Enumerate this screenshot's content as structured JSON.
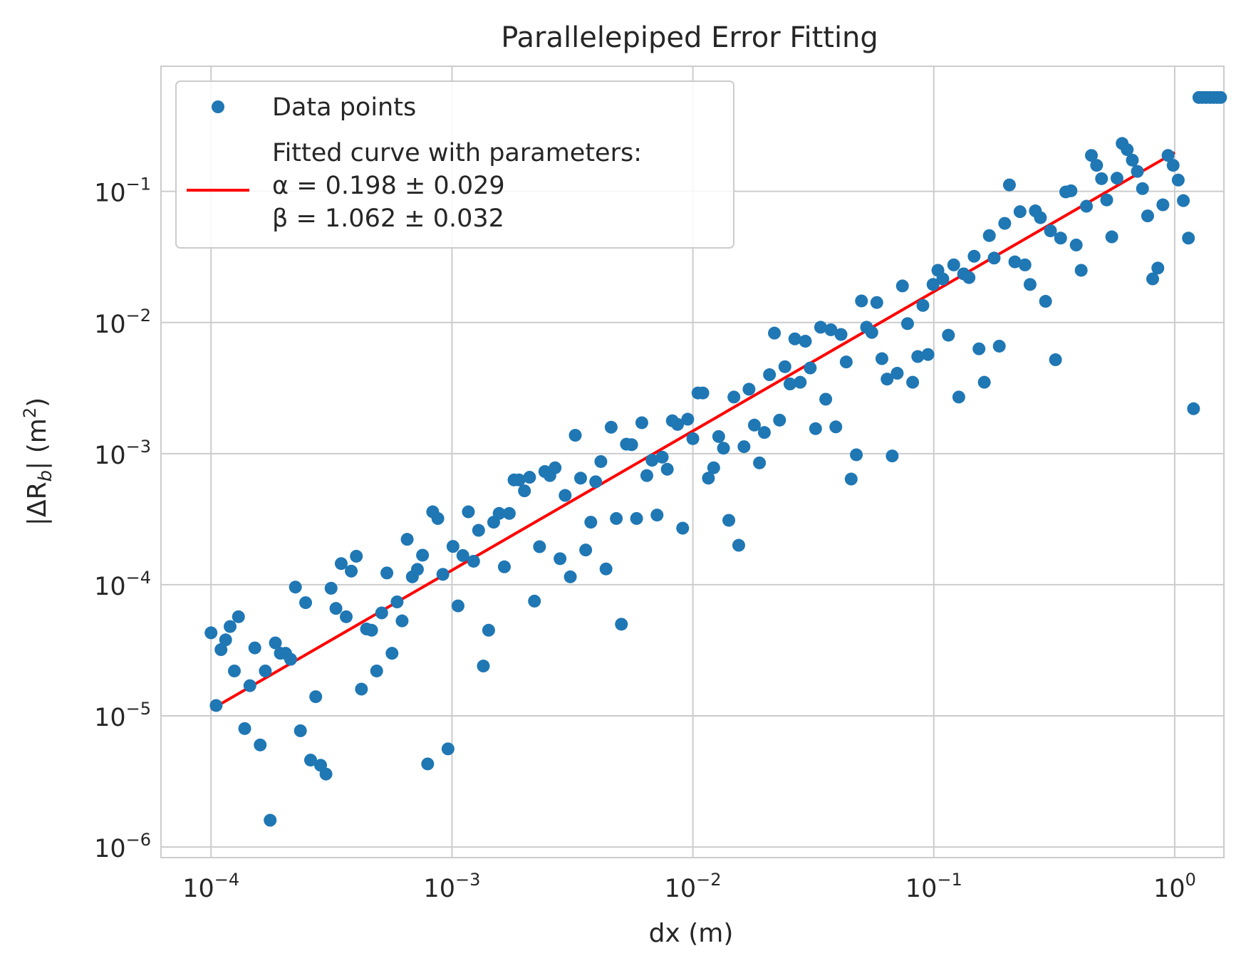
{
  "chart_data": {
    "type": "scatter",
    "title": "Parallelepiped Error Fitting",
    "xlabel": "dx (m)",
    "ylabel_main": "|ΔR",
    "ylabel_sub": "b",
    "ylabel_tail": "| (m",
    "ylabel_sup": "2",
    "ylabel_close": ")",
    "xscale": "log",
    "yscale": "log",
    "xlim": [
      6.2e-05,
      1.6
    ],
    "ylim": [
      8.3e-07,
      0.9
    ],
    "grid": true,
    "legend_position": "upper-left",
    "x_ticks": [
      {
        "value": 0.0001,
        "base": "10",
        "exp": "−4"
      },
      {
        "value": 0.001,
        "base": "10",
        "exp": "−3"
      },
      {
        "value": 0.01,
        "base": "10",
        "exp": "−2"
      },
      {
        "value": 0.1,
        "base": "10",
        "exp": "−1"
      },
      {
        "value": 1,
        "base": "10",
        "exp": "0"
      }
    ],
    "y_ticks": [
      {
        "value": 1e-06,
        "base": "10",
        "exp": "−6"
      },
      {
        "value": 1e-05,
        "base": "10",
        "exp": "−5"
      },
      {
        "value": 0.0001,
        "base": "10",
        "exp": "−4"
      },
      {
        "value": 0.001,
        "base": "10",
        "exp": "−3"
      },
      {
        "value": 0.01,
        "base": "10",
        "exp": "−2"
      },
      {
        "value": 0.1,
        "base": "10",
        "exp": "−1"
      }
    ],
    "series": [
      {
        "name": "Data points",
        "kind": "scatter",
        "color": "#1f77b4",
        "points": [
          [
            0.0001,
            4.3e-05
          ],
          [
            0.000105,
            1.2e-05
          ],
          [
            0.00011,
            3.2e-05
          ],
          [
            0.000115,
            3.8e-05
          ],
          [
            0.00012,
            4.8e-05
          ],
          [
            0.000125,
            2.2e-05
          ],
          [
            0.00013,
            5.7e-05
          ],
          [
            0.000138,
            8e-06
          ],
          [
            0.000145,
            1.7e-05
          ],
          [
            0.000152,
            3.3e-05
          ],
          [
            0.00016,
            6e-06
          ],
          [
            0.000168,
            2.2e-05
          ],
          [
            0.000176,
            1.6e-06
          ],
          [
            0.000185,
            3.6e-05
          ],
          [
            0.000194,
            3e-05
          ],
          [
            0.000204,
            3e-05
          ],
          [
            0.000214,
            2.7e-05
          ],
          [
            0.000224,
            9.6e-05
          ],
          [
            0.000235,
            7.7e-06
          ],
          [
            0.000247,
            7.3e-05
          ],
          [
            0.000259,
            4.6e-06
          ],
          [
            0.000272,
            1.4e-05
          ],
          [
            0.000285,
            4.2e-06
          ],
          [
            0.0003,
            3.6e-06
          ],
          [
            0.000315,
            9.4e-05
          ],
          [
            0.00033,
            6.6e-05
          ],
          [
            0.000347,
            0.000145
          ],
          [
            0.000364,
            5.7e-05
          ],
          [
            0.000382,
            0.000127
          ],
          [
            0.000401,
            0.000165
          ],
          [
            0.000421,
            1.6e-05
          ],
          [
            0.000442,
            4.6e-05
          ],
          [
            0.000464,
            4.5e-05
          ],
          [
            0.000487,
            2.2e-05
          ],
          [
            0.000511,
            6.1e-05
          ],
          [
            0.000537,
            0.000123
          ],
          [
            0.000564,
            3e-05
          ],
          [
            0.000592,
            7.4e-05
          ],
          [
            0.000621,
            5.3e-05
          ],
          [
            0.000652,
            0.000222
          ],
          [
            0.000685,
            0.000115
          ],
          [
            0.000719,
            0.000131
          ],
          [
            0.000755,
            0.000168
          ],
          [
            0.000793,
            4.3e-06
          ],
          [
            0.000832,
            0.00036
          ],
          [
            0.000874,
            0.00032
          ],
          [
            0.000917,
            0.00012
          ],
          [
            0.000963,
            5.6e-06
          ],
          [
            0.00101,
            0.000196
          ],
          [
            0.00106,
            6.9e-05
          ],
          [
            0.00111,
            0.000167
          ],
          [
            0.00117,
            0.00036
          ],
          [
            0.00123,
            0.000151
          ],
          [
            0.00129,
            0.00026
          ],
          [
            0.00135,
            2.4e-05
          ],
          [
            0.00142,
            4.5e-05
          ],
          [
            0.00149,
            0.0003
          ],
          [
            0.00157,
            0.00035
          ],
          [
            0.00165,
            0.000137
          ],
          [
            0.00173,
            0.00035
          ],
          [
            0.00181,
            0.00063
          ],
          [
            0.0019,
            0.00063
          ],
          [
            0.002,
            0.00052
          ],
          [
            0.0021,
            0.00066
          ],
          [
            0.0022,
            7.5e-05
          ],
          [
            0.00231,
            0.000195
          ],
          [
            0.00243,
            0.00073
          ],
          [
            0.00255,
            0.00068
          ],
          [
            0.00268,
            0.00078
          ],
          [
            0.00281,
            0.000158
          ],
          [
            0.00295,
            0.00048
          ],
          [
            0.0031,
            0.000115
          ],
          [
            0.00325,
            0.00138
          ],
          [
            0.00342,
            0.00065
          ],
          [
            0.00359,
            0.000184
          ],
          [
            0.00377,
            0.0003
          ],
          [
            0.00395,
            0.00061
          ],
          [
            0.00415,
            0.00087
          ],
          [
            0.00436,
            0.000132
          ],
          [
            0.00458,
            0.00159
          ],
          [
            0.00481,
            0.00032
          ],
          [
            0.00505,
            5e-05
          ],
          [
            0.0053,
            0.00118
          ],
          [
            0.00557,
            0.00117
          ],
          [
            0.00584,
            0.00032
          ],
          [
            0.00614,
            0.00172
          ],
          [
            0.00644,
            0.00068
          ],
          [
            0.00677,
            0.00089
          ],
          [
            0.0071,
            0.00034
          ],
          [
            0.00746,
            0.00094
          ],
          [
            0.00783,
            0.00076
          ],
          [
            0.00822,
            0.00178
          ],
          [
            0.00864,
            0.00167
          ],
          [
            0.00907,
            0.00027
          ],
          [
            0.00952,
            0.00183
          ],
          [
            0.01,
            0.0013
          ],
          [
            0.0105,
            0.0029
          ],
          [
            0.011,
            0.0029
          ],
          [
            0.0116,
            0.00065
          ],
          [
            0.0122,
            0.00078
          ],
          [
            0.0128,
            0.00135
          ],
          [
            0.0134,
            0.0011
          ],
          [
            0.0141,
            0.00031
          ],
          [
            0.0148,
            0.0027
          ],
          [
            0.0155,
            0.0002
          ],
          [
            0.0163,
            0.00113
          ],
          [
            0.0171,
            0.0031
          ],
          [
            0.018,
            0.00165
          ],
          [
            0.0189,
            0.00085
          ],
          [
            0.0198,
            0.00145
          ],
          [
            0.0208,
            0.004
          ],
          [
            0.0218,
            0.0083
          ],
          [
            0.0229,
            0.0018
          ],
          [
            0.0241,
            0.0046
          ],
          [
            0.0253,
            0.0034
          ],
          [
            0.0265,
            0.0075
          ],
          [
            0.0279,
            0.0035
          ],
          [
            0.0293,
            0.0072
          ],
          [
            0.0307,
            0.0045
          ],
          [
            0.0323,
            0.00155
          ],
          [
            0.0339,
            0.0092
          ],
          [
            0.0356,
            0.0026
          ],
          [
            0.0374,
            0.0088
          ],
          [
            0.0392,
            0.0016
          ],
          [
            0.0412,
            0.0081
          ],
          [
            0.0433,
            0.005
          ],
          [
            0.0454,
            0.00064
          ],
          [
            0.0477,
            0.00098
          ],
          [
            0.0501,
            0.0146
          ],
          [
            0.0526,
            0.0092
          ],
          [
            0.0553,
            0.0084
          ],
          [
            0.058,
            0.0142
          ],
          [
            0.0609,
            0.0053
          ],
          [
            0.064,
            0.0037
          ],
          [
            0.0672,
            0.00096
          ],
          [
            0.0705,
            0.0041
          ],
          [
            0.0741,
            0.019
          ],
          [
            0.0778,
            0.0098
          ],
          [
            0.0817,
            0.0035
          ],
          [
            0.0858,
            0.0055
          ],
          [
            0.0901,
            0.0135
          ],
          [
            0.0946,
            0.0057
          ],
          [
            0.0993,
            0.0195
          ],
          [
            0.104,
            0.025
          ],
          [
            0.109,
            0.0215
          ],
          [
            0.115,
            0.008
          ],
          [
            0.121,
            0.0275
          ],
          [
            0.127,
            0.0027
          ],
          [
            0.133,
            0.0235
          ],
          [
            0.14,
            0.022
          ],
          [
            0.147,
            0.032
          ],
          [
            0.154,
            0.0063
          ],
          [
            0.162,
            0.0035
          ],
          [
            0.17,
            0.046
          ],
          [
            0.178,
            0.031
          ],
          [
            0.187,
            0.0066
          ],
          [
            0.197,
            0.057
          ],
          [
            0.206,
            0.112
          ],
          [
            0.217,
            0.029
          ],
          [
            0.228,
            0.07
          ],
          [
            0.239,
            0.0275
          ],
          [
            0.251,
            0.0195
          ],
          [
            0.264,
            0.071
          ],
          [
            0.277,
            0.063
          ],
          [
            0.291,
            0.0145
          ],
          [
            0.305,
            0.05
          ],
          [
            0.32,
            0.0052
          ],
          [
            0.336,
            0.044
          ],
          [
            0.353,
            0.099
          ],
          [
            0.371,
            0.101
          ],
          [
            0.39,
            0.039
          ],
          [
            0.409,
            0.025
          ],
          [
            0.43,
            0.077
          ],
          [
            0.451,
            0.188
          ],
          [
            0.474,
            0.158
          ],
          [
            0.497,
            0.125
          ],
          [
            0.522,
            0.086
          ],
          [
            0.548,
            0.045
          ],
          [
            0.576,
            0.126
          ],
          [
            0.605,
            0.232
          ],
          [
            0.635,
            0.208
          ],
          [
            0.667,
            0.173
          ],
          [
            0.7,
            0.142
          ],
          [
            0.735,
            0.105
          ],
          [
            0.772,
            0.065
          ],
          [
            0.81,
            0.0215
          ],
          [
            0.851,
            0.026
          ],
          [
            0.893,
            0.079
          ],
          [
            0.938,
            0.188
          ],
          [
            0.985,
            0.158
          ],
          [
            1.034,
            0.122
          ],
          [
            1.086,
            0.085
          ],
          [
            1.14,
            0.044
          ],
          [
            1.197,
            0.0022
          ],
          [
            1.26,
            0.52
          ],
          [
            1.3,
            0.52
          ],
          [
            1.35,
            0.52
          ],
          [
            1.4,
            0.52
          ],
          [
            1.45,
            0.52
          ],
          [
            1.5,
            0.52
          ],
          [
            1.55,
            0.52
          ]
        ]
      },
      {
        "name": "Fitted curve with parameters:",
        "kind": "line",
        "color": "#ff0000",
        "alpha": 0.198,
        "beta": 1.062,
        "x_range": [
          0.0001,
          1
        ]
      }
    ],
    "legend": {
      "scatter_label": "Data points",
      "line_label_1": "Fitted curve with parameters:",
      "line_label_2": "α = 0.198 ± 0.029",
      "line_label_3": "β = 1.062 ± 0.032"
    }
  }
}
